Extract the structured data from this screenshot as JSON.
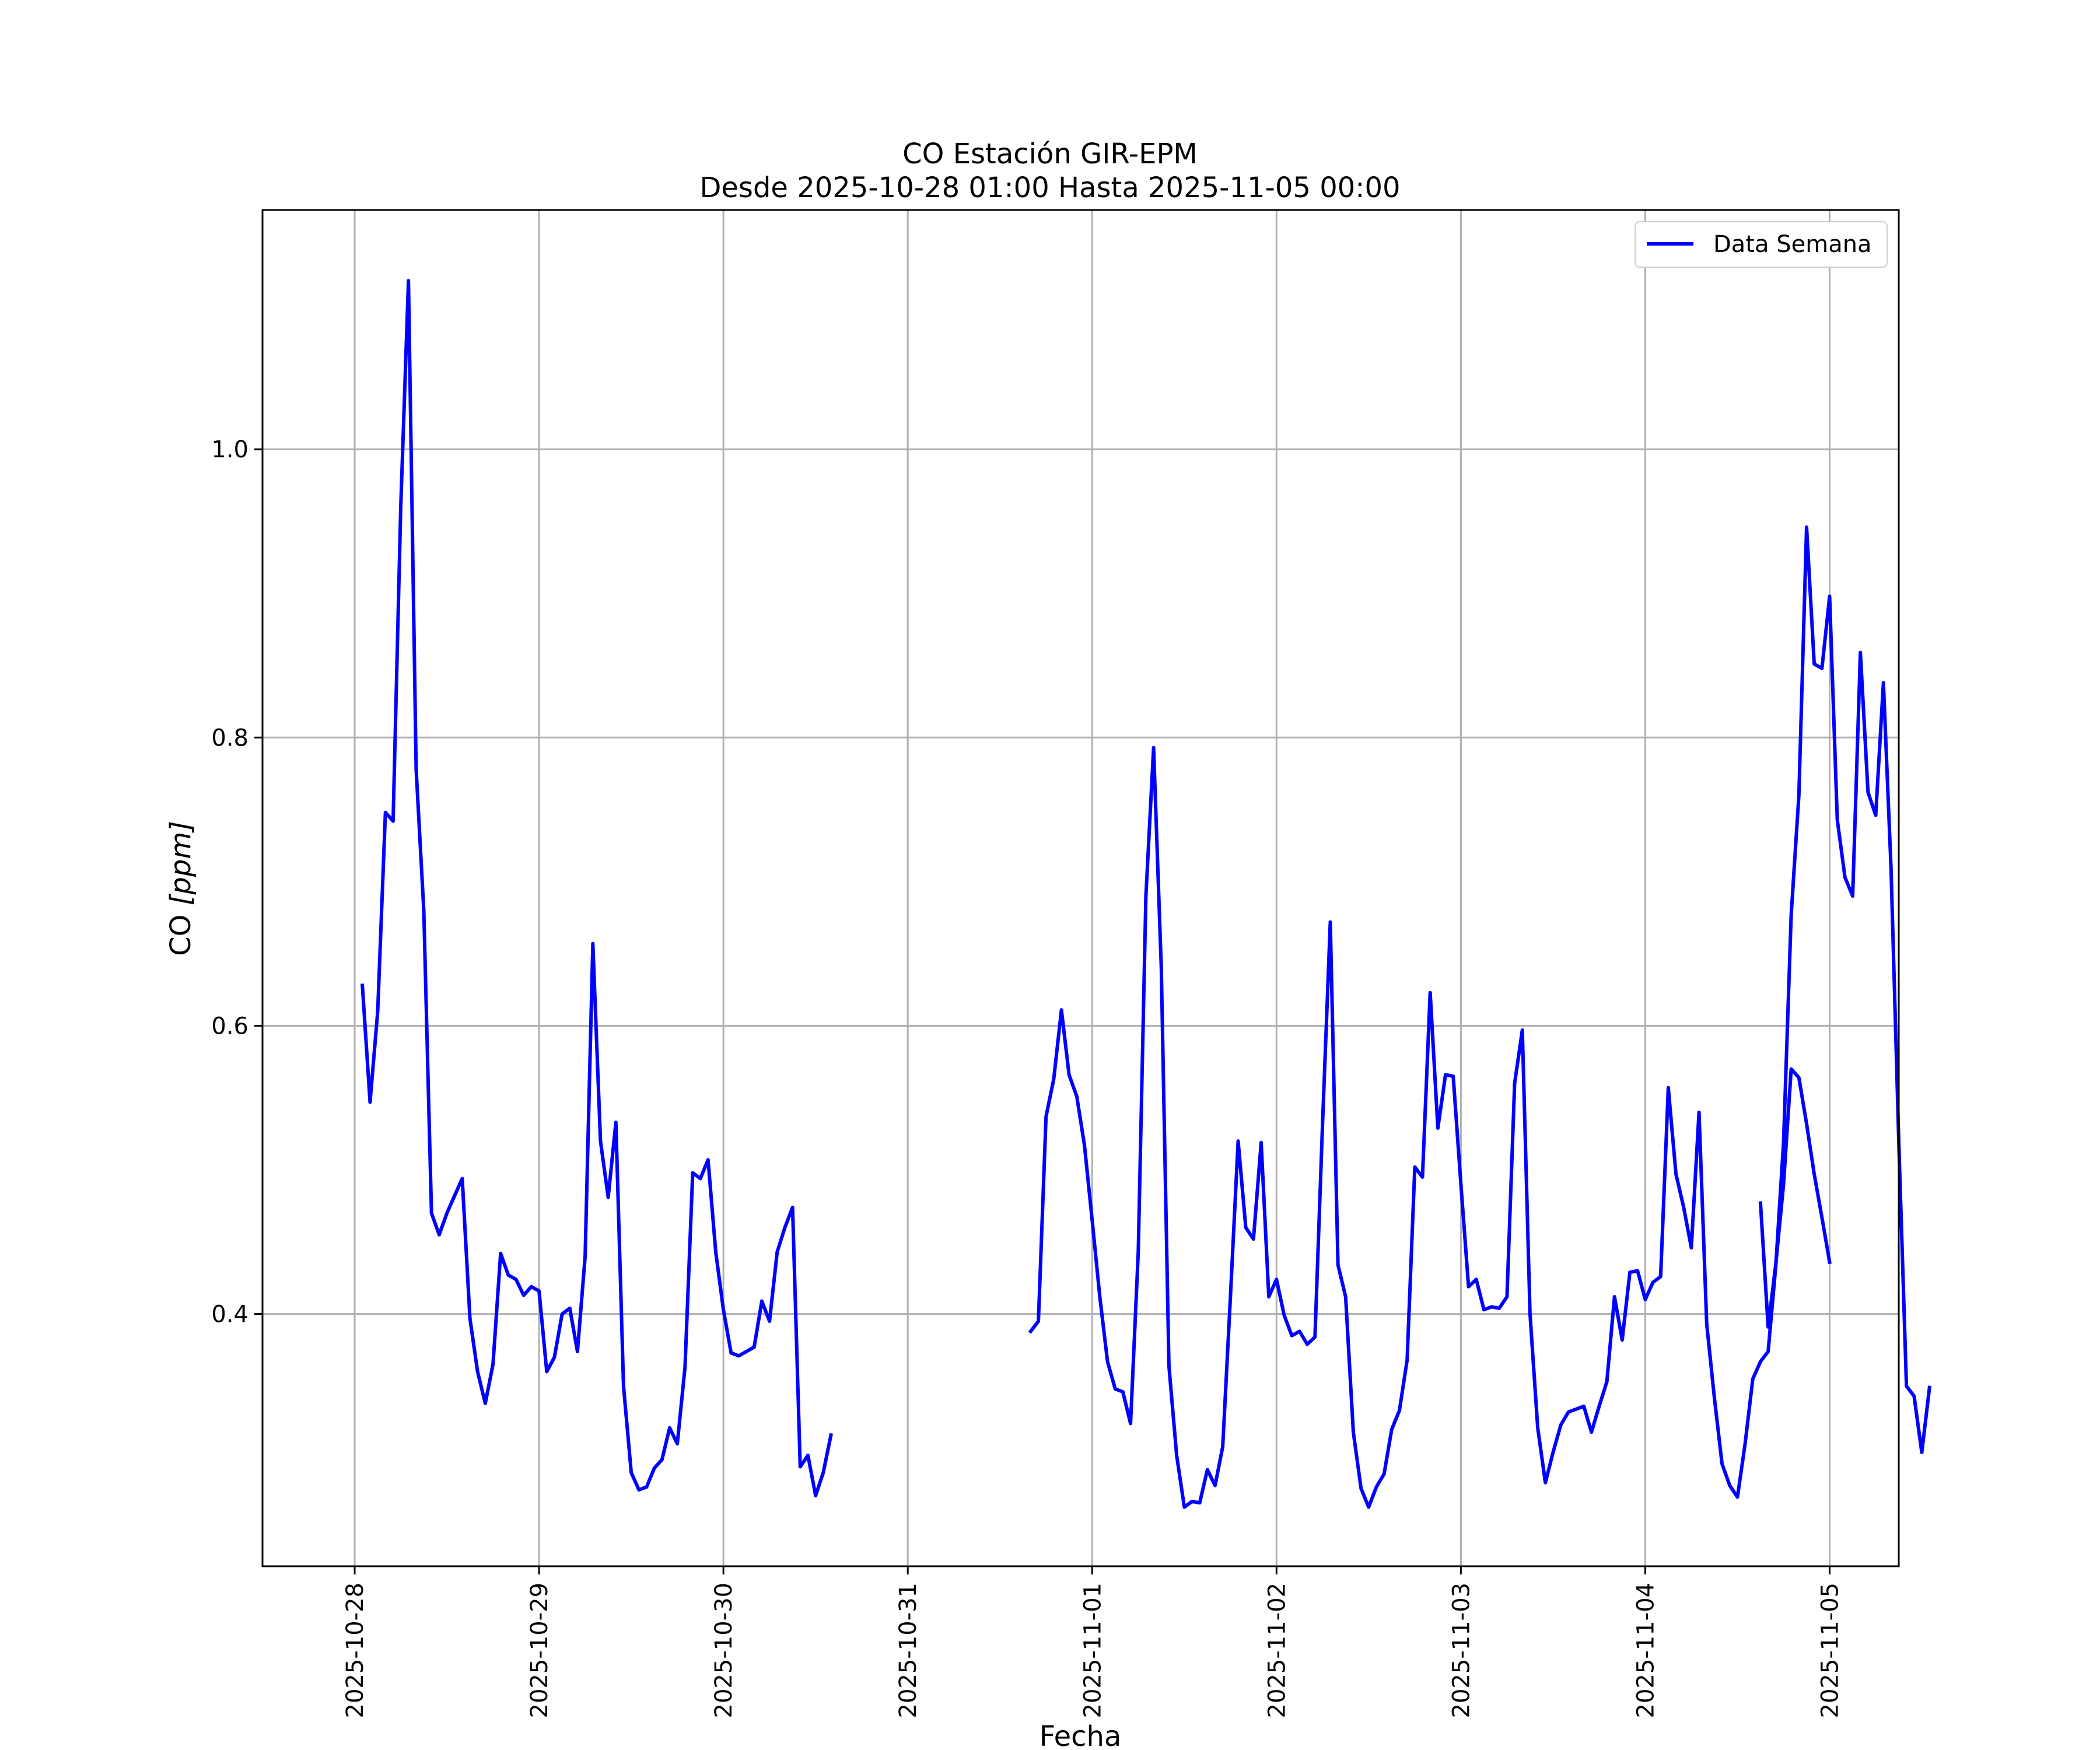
{
  "chart_data": {
    "type": "line",
    "title": "CO Estación GIR-EPM",
    "subtitle": "Desde 2025-10-28 01:00 Hasta 2025-11-05 00:00",
    "xlabel": "Fecha",
    "ylabel_main": "CO ",
    "ylabel_unit": "[ppm]",
    "x_ticks": [
      "2025-10-28",
      "2025-10-29",
      "2025-10-30",
      "2025-10-31",
      "2025-11-01",
      "2025-11-02",
      "2025-11-03",
      "2025-11-04",
      "2025-11-05"
    ],
    "y_ticks": [
      "0.4",
      "0.6",
      "0.8",
      "1.0"
    ],
    "y_tick_values": [
      0.4,
      0.6,
      0.8,
      1.0
    ],
    "ylim": [
      0.225,
      1.166
    ],
    "xlim": [
      "2025-10-27 12:00",
      "2025-11-05 09:00"
    ],
    "grid": true,
    "legend_position": "top-right",
    "colors": {
      "series": "#0000ff",
      "grid": "#b0b0b0",
      "axes": "#000000"
    },
    "series": [
      {
        "name": "Data Semana",
        "segments": [
          {
            "start": "2025-10-28 01:00",
            "values": [
              0.628,
              0.547,
              0.61,
              0.748,
              0.742,
              0.96,
              1.117,
              0.778,
              0.68,
              0.47,
              0.455,
              0.47,
              0.482,
              0.494,
              0.397,
              0.36,
              0.338,
              0.365,
              0.442,
              0.427,
              0.424,
              0.413,
              0.419,
              0.416,
              0.36,
              0.37,
              0.4,
              0.404,
              0.374,
              0.44,
              0.657,
              0.52,
              0.481,
              0.533,
              0.35,
              0.29,
              0.278,
              0.28,
              0.293,
              0.299,
              0.321,
              0.31,
              0.363,
              0.498,
              0.494,
              0.507,
              0.443,
              0.403,
              0.373,
              0.371,
              0.374,
              0.377,
              0.409,
              0.395,
              0.443,
              0.46,
              0.474,
              0.294,
              0.302,
              0.274,
              0.29,
              0.316
            ]
          },
          {
            "start": "2025-10-31 16:00",
            "values": [
              0.388,
              0.395,
              0.537,
              0.563,
              0.611,
              0.566,
              0.551,
              0.517,
              0.465,
              0.412,
              0.367,
              0.348,
              0.346,
              0.324,
              0.443,
              0.69,
              0.793,
              0.64,
              0.364,
              0.302,
              0.266,
              0.27,
              0.269,
              0.292,
              0.281,
              0.308,
              0.412,
              0.52,
              0.46,
              0.452,
              0.519,
              0.412,
              0.424,
              0.399,
              0.385,
              0.388,
              0.379,
              0.384,
              0.533,
              0.672,
              0.434,
              0.412,
              0.318,
              0.279,
              0.266,
              0.28,
              0.289,
              0.32,
              0.333,
              0.368,
              0.502,
              0.495,
              0.623,
              0.529,
              0.566,
              0.565,
              0.49,
              0.419,
              0.424,
              0.403,
              0.405,
              0.404,
              0.412,
              0.56,
              0.597,
              0.4,
              0.321,
              0.283,
              0.304,
              0.323,
              0.332,
              0.334,
              0.336,
              0.318,
              0.336,
              0.353,
              0.412,
              0.382,
              0.429,
              0.43,
              0.41,
              0.422,
              0.426,
              0.557,
              0.497,
              0.474,
              0.446,
              0.54,
              0.393,
              0.342,
              0.296,
              0.281,
              0.273,
              0.31,
              0.355,
              0.367,
              0.374,
              0.434,
              0.519,
              0.677,
              0.76,
              0.946,
              0.851,
              0.848,
              0.898,
              0.743,
              0.703,
              0.69,
              0.859,
              0.762,
              0.746,
              0.838,
              0.709,
              0.52,
              0.35,
              0.343,
              0.304,
              0.349
            ]
          },
          {
            "start": "2025-11-04 15:00",
            "values": [
              0.477,
              0.391,
              0.435,
              0.49,
              0.57,
              0.564,
              0.532,
              0.497,
              0.467,
              0.436
            ]
          }
        ]
      }
    ]
  }
}
